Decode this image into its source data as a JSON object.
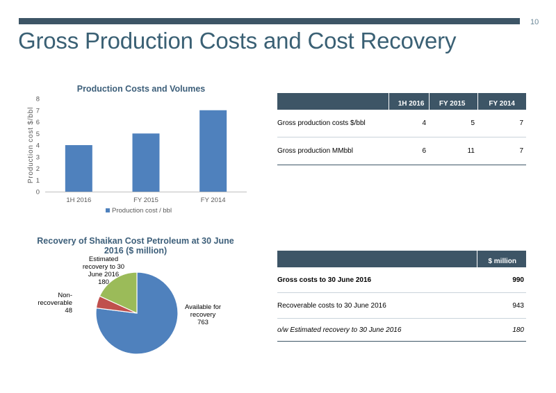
{
  "page_number": "10",
  "title": "Gross Production Costs and Cost Recovery",
  "chart_data": [
    {
      "type": "bar",
      "title": "Production Costs and Volumes",
      "ylabel": "Production cost $/bbl",
      "xlabel": "",
      "categories": [
        "1H 2016",
        "FY 2015",
        "FY 2014"
      ],
      "series": [
        {
          "name": "Production cost / bbl",
          "values": [
            4,
            5,
            7
          ]
        }
      ],
      "yticks": [
        "0",
        "1",
        "2",
        "3",
        "4",
        "5",
        "6",
        "7",
        "8"
      ],
      "ylim": [
        0,
        8
      ],
      "grid": false,
      "legend": "bottom",
      "color": "#4f81bd"
    },
    {
      "type": "pie",
      "title": "Recovery of Shaikan Cost Petroleum at 30 June 2016 ($ million)",
      "title_lines": [
        "Recovery of Shaikan Cost Petroleum at 30 June",
        "2016 ($ million)"
      ],
      "slices": [
        {
          "label": "Available for recovery",
          "value": 763,
          "label_lines": [
            "Available for",
            "recovery",
            "763"
          ],
          "color": "#4f81bd"
        },
        {
          "label": "Non-recoverable",
          "value": 48,
          "label_lines": [
            "Non-",
            "recoverable",
            "48"
          ],
          "color": "#c0504d"
        },
        {
          "label": "Estimated recovery to 30 June 2016",
          "value": 180,
          "label_lines": [
            "Estimated",
            "recovery to 30",
            "June 2016",
            "180"
          ],
          "color": "#9bbb59"
        }
      ],
      "legend": "none"
    }
  ],
  "table1": {
    "headers": [
      "",
      "1H 2016",
      "FY 2015",
      "FY 2014"
    ],
    "rows": [
      {
        "label": "Gross production costs $/bbl",
        "values": [
          "4",
          "5",
          "7"
        ]
      },
      {
        "label": "Gross production MMbbl",
        "values": [
          "6",
          "11",
          "7"
        ]
      }
    ]
  },
  "table2": {
    "headers": [
      "",
      "$ million"
    ],
    "rows": [
      {
        "label": "Gross costs to 30 June 2016",
        "value": "990",
        "style": "bold"
      },
      {
        "label": "Recoverable costs  to 30 June 2016",
        "value": "943",
        "style": "normal"
      },
      {
        "label": "o/w Estimated recovery to 30 June 2016",
        "value": "180",
        "style": "italic"
      }
    ]
  }
}
